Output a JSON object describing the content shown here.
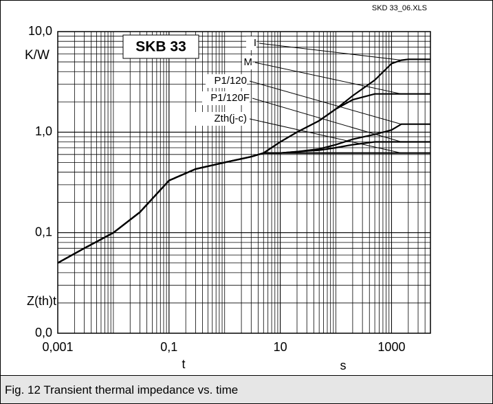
{
  "chart_data": {
    "type": "line",
    "file_label": "SKD 33_06.XLS",
    "title": "SKB 33",
    "y_unit": "K/W",
    "ylabel": "Z(th)t",
    "xlabel": "t",
    "x_unit": "s",
    "caption": "Fig. 12 Transient thermal impedance vs. time",
    "log_x": true,
    "log_y": true,
    "grid": true,
    "xlim": [
      0.001,
      5000
    ],
    "xticks": [
      {
        "value": 0.001,
        "label": "0,001"
      },
      {
        "value": 0.1,
        "label": "0,1"
      },
      10,
      1000
    ],
    "ylim": [
      0.01,
      10
    ],
    "yticks": [
      {
        "value": 0.01,
        "label": "0,0"
      },
      {
        "value": 0.1,
        "label": "0,1"
      },
      {
        "value": 1,
        "label": "1,0"
      },
      {
        "value": 10,
        "label": "10,0"
      }
    ],
    "x": [
      0.001,
      0.003,
      0.01,
      0.03,
      0.1,
      0.3,
      1,
      3,
      5,
      10,
      20,
      50,
      100,
      200,
      500,
      1000,
      1500,
      2000,
      5000
    ],
    "series": [
      {
        "name": "I",
        "color": "#000000",
        "values": [
          0.05,
          0.07,
          0.1,
          0.16,
          0.33,
          0.43,
          0.5,
          0.57,
          0.62,
          0.8,
          1.0,
          1.3,
          1.7,
          2.3,
          3.3,
          4.8,
          5.2,
          5.3,
          5.3
        ]
      },
      {
        "name": "M",
        "color": "#000000",
        "values": [
          0.05,
          0.07,
          0.1,
          0.16,
          0.33,
          0.43,
          0.5,
          0.57,
          0.62,
          0.8,
          1.0,
          1.3,
          1.7,
          2.1,
          2.4,
          2.4,
          2.4,
          2.4,
          2.4
        ]
      },
      {
        "name": "P1/120",
        "color": "#000000",
        "values": [
          0.05,
          0.07,
          0.1,
          0.16,
          0.33,
          0.43,
          0.5,
          0.57,
          0.62,
          0.62,
          0.64,
          0.68,
          0.75,
          0.85,
          0.95,
          1.05,
          1.2,
          1.2,
          1.2
        ]
      },
      {
        "name": "P1/120F",
        "color": "#000000",
        "values": [
          0.05,
          0.07,
          0.1,
          0.16,
          0.33,
          0.43,
          0.5,
          0.57,
          0.62,
          0.62,
          0.64,
          0.66,
          0.7,
          0.75,
          0.8,
          0.8,
          0.8,
          0.8,
          0.8
        ]
      },
      {
        "name": "Zth(j-c)",
        "color": "#000000",
        "values": [
          0.05,
          0.07,
          0.1,
          0.16,
          0.33,
          0.43,
          0.5,
          0.57,
          0.62,
          0.62,
          0.62,
          0.62,
          0.62,
          0.62,
          0.62,
          0.62,
          0.62,
          0.62,
          0.62
        ]
      }
    ]
  }
}
